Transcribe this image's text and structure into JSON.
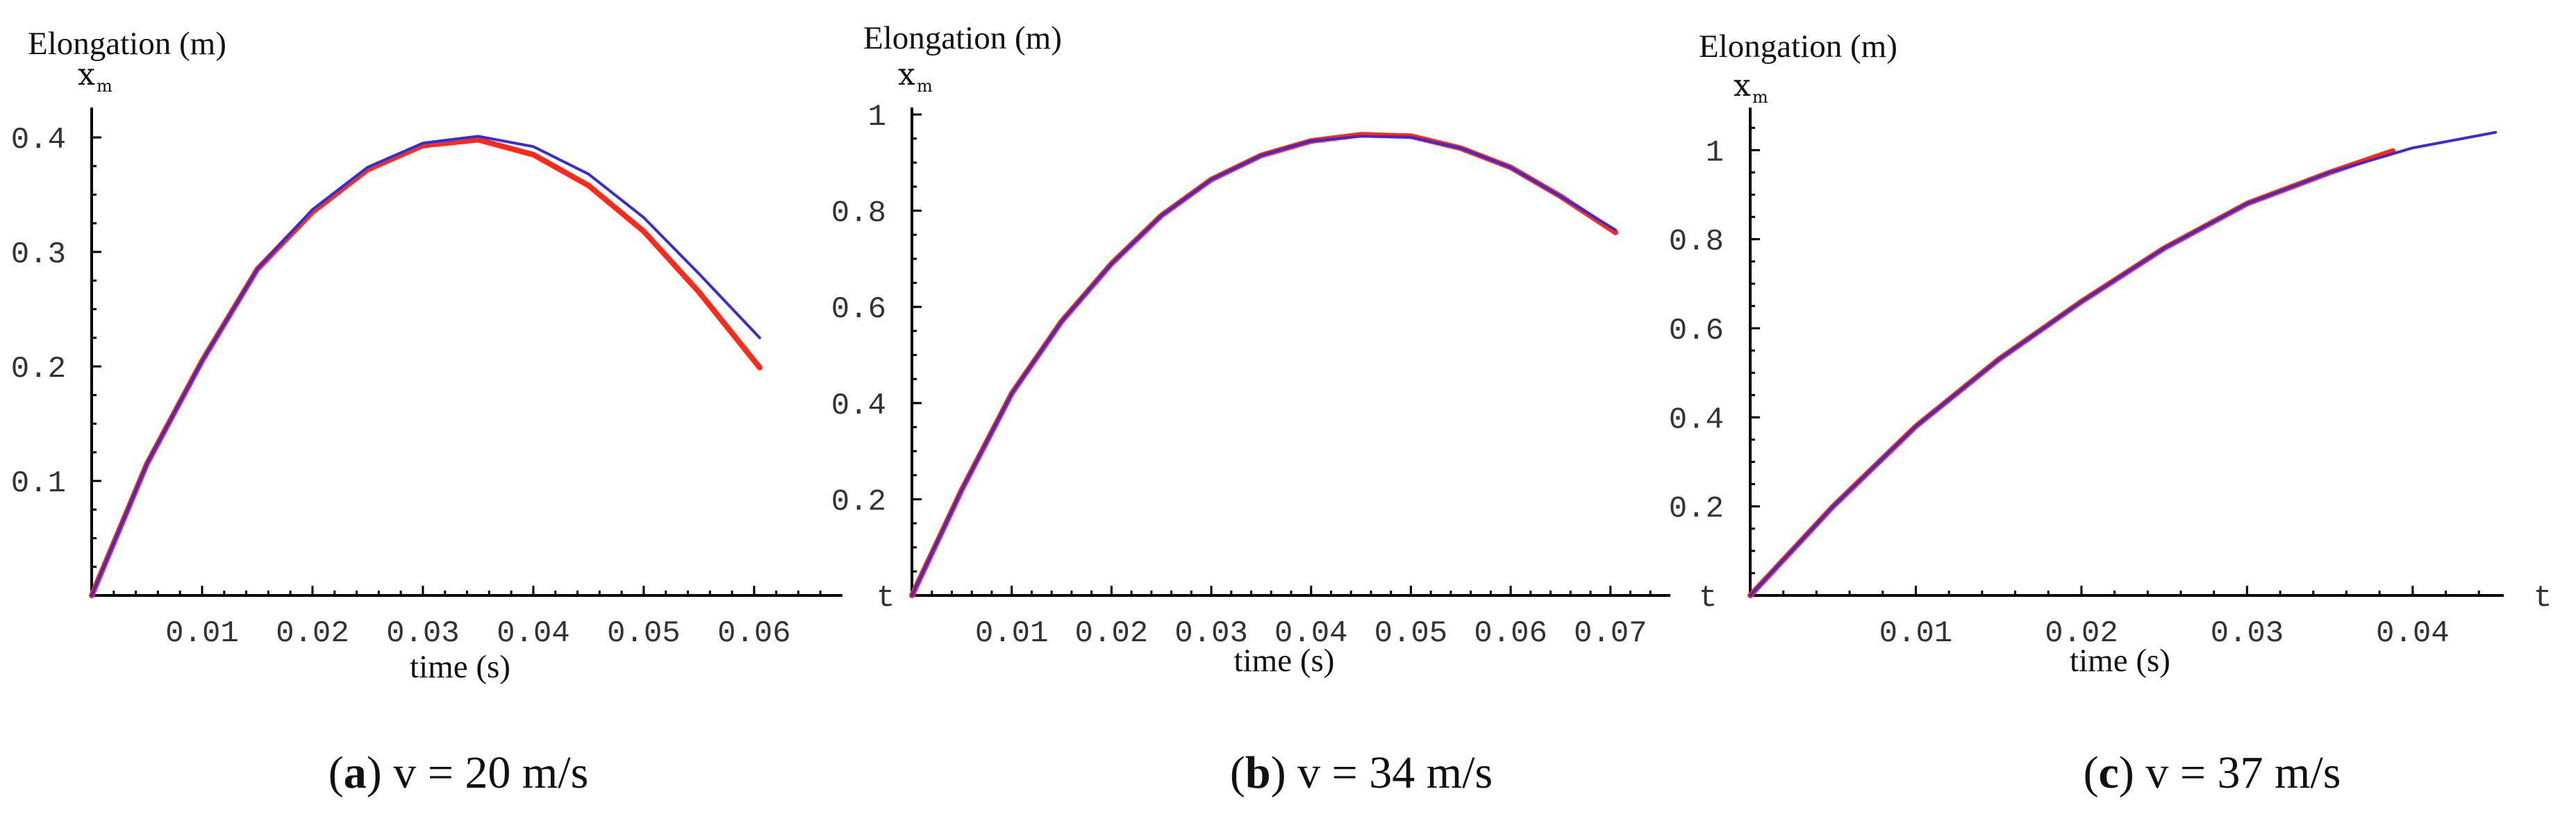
{
  "chart_data": [
    {
      "type": "line",
      "title": "Elongation (m)",
      "ylabel": "x",
      "ylabel_sub": "m",
      "xlabel": "time (s)",
      "x_axis_end_label": "",
      "y_origin_label": "",
      "xlim": [
        0,
        0.068
      ],
      "ylim": [
        0,
        0.42
      ],
      "xticks": [
        0.01,
        0.02,
        0.03,
        0.04,
        0.05,
        0.06
      ],
      "xtick_labels": [
        "0.01",
        "0.02",
        "0.03",
        "0.04",
        "0.05",
        "0.06"
      ],
      "yticks": [
        0.1,
        0.2,
        0.3,
        0.4
      ],
      "ytick_labels": [
        "0.1",
        "0.2",
        "0.3",
        "0.4"
      ],
      "caption": {
        "letter": "a",
        "text": " v = 20 m/s"
      },
      "series": [
        {
          "name": "red",
          "color": "#ff2a1a",
          "x": [
            0,
            0.005,
            0.01,
            0.015,
            0.02,
            0.025,
            0.03,
            0.035,
            0.04,
            0.045,
            0.05,
            0.055,
            0.0605
          ],
          "y": [
            0,
            0.115,
            0.205,
            0.285,
            0.335,
            0.372,
            0.393,
            0.398,
            0.385,
            0.358,
            0.318,
            0.265,
            0.199
          ]
        },
        {
          "name": "blue",
          "color": "#3a2bd6",
          "x": [
            0,
            0.005,
            0.01,
            0.015,
            0.02,
            0.025,
            0.03,
            0.035,
            0.04,
            0.045,
            0.05,
            0.055,
            0.0605
          ],
          "y": [
            0,
            0.115,
            0.205,
            0.285,
            0.337,
            0.374,
            0.395,
            0.401,
            0.392,
            0.368,
            0.33,
            0.281,
            0.225
          ]
        }
      ]
    },
    {
      "type": "line",
      "title": "Elongation (m)",
      "ylabel": "x",
      "ylabel_sub": "m",
      "xlabel": "time (s)",
      "x_axis_end_label": "",
      "y_origin_label": "t",
      "xlim": [
        0,
        0.076
      ],
      "ylim": [
        0,
        1.0
      ],
      "xticks": [
        0.01,
        0.02,
        0.03,
        0.04,
        0.05,
        0.06,
        0.07
      ],
      "xtick_labels": [
        "0.01",
        "0.02",
        "0.03",
        "0.04",
        "0.05",
        "0.06",
        "0.07"
      ],
      "yticks": [
        0.2,
        0.4,
        0.6,
        0.8,
        1.0
      ],
      "ytick_labels": [
        "0.2",
        "0.4",
        "0.6",
        "0.8",
        "1"
      ],
      "caption": {
        "letter": "b",
        "text": " v = 34 m/s"
      },
      "series": [
        {
          "name": "red",
          "color": "#ff2a1a",
          "x": [
            0,
            0.005,
            0.01,
            0.015,
            0.02,
            0.025,
            0.03,
            0.035,
            0.04,
            0.045,
            0.05,
            0.055,
            0.06,
            0.065,
            0.0705
          ],
          "y": [
            0,
            0.22,
            0.42,
            0.57,
            0.69,
            0.79,
            0.865,
            0.915,
            0.945,
            0.958,
            0.955,
            0.93,
            0.89,
            0.83,
            0.755
          ]
        },
        {
          "name": "blue",
          "color": "#3a2bd6",
          "x": [
            0,
            0.005,
            0.01,
            0.015,
            0.02,
            0.025,
            0.03,
            0.035,
            0.04,
            0.045,
            0.05,
            0.055,
            0.06,
            0.065,
            0.0705
          ],
          "y": [
            0,
            0.22,
            0.42,
            0.57,
            0.69,
            0.79,
            0.865,
            0.915,
            0.945,
            0.955,
            0.953,
            0.93,
            0.89,
            0.83,
            0.76
          ]
        }
      ]
    },
    {
      "type": "line",
      "title": "Elongation (m)",
      "ylabel": "x",
      "ylabel_sub": "m",
      "xlabel": "time (s)",
      "x_axis_end_label": "t",
      "y_origin_label": "t",
      "xlim": [
        0,
        0.0455
      ],
      "ylim": [
        0,
        1.08
      ],
      "xticks": [
        0.01,
        0.02,
        0.03,
        0.04
      ],
      "xtick_labels": [
        "0.01",
        "0.02",
        "0.03",
        "0.04"
      ],
      "yticks": [
        0.2,
        0.4,
        0.6,
        0.8,
        1.0
      ],
      "ytick_labels": [
        "0.2",
        "0.4",
        "0.6",
        "0.8",
        "1"
      ],
      "caption": {
        "letter": "c",
        "text": " v = 37 m/s"
      },
      "series": [
        {
          "name": "red",
          "color": "#ff2a1a",
          "x": [
            0,
            0.005,
            0.01,
            0.015,
            0.02,
            0.025,
            0.03,
            0.035,
            0.0388
          ],
          "y": [
            0,
            0.2,
            0.38,
            0.53,
            0.66,
            0.78,
            0.88,
            0.95,
            0.998
          ]
        },
        {
          "name": "blue",
          "color": "#3a2bd6",
          "x": [
            0,
            0.005,
            0.01,
            0.015,
            0.02,
            0.025,
            0.03,
            0.035,
            0.04,
            0.045
          ],
          "y": [
            0,
            0.2,
            0.38,
            0.53,
            0.66,
            0.78,
            0.88,
            0.95,
            1.005,
            1.04
          ]
        }
      ]
    }
  ]
}
